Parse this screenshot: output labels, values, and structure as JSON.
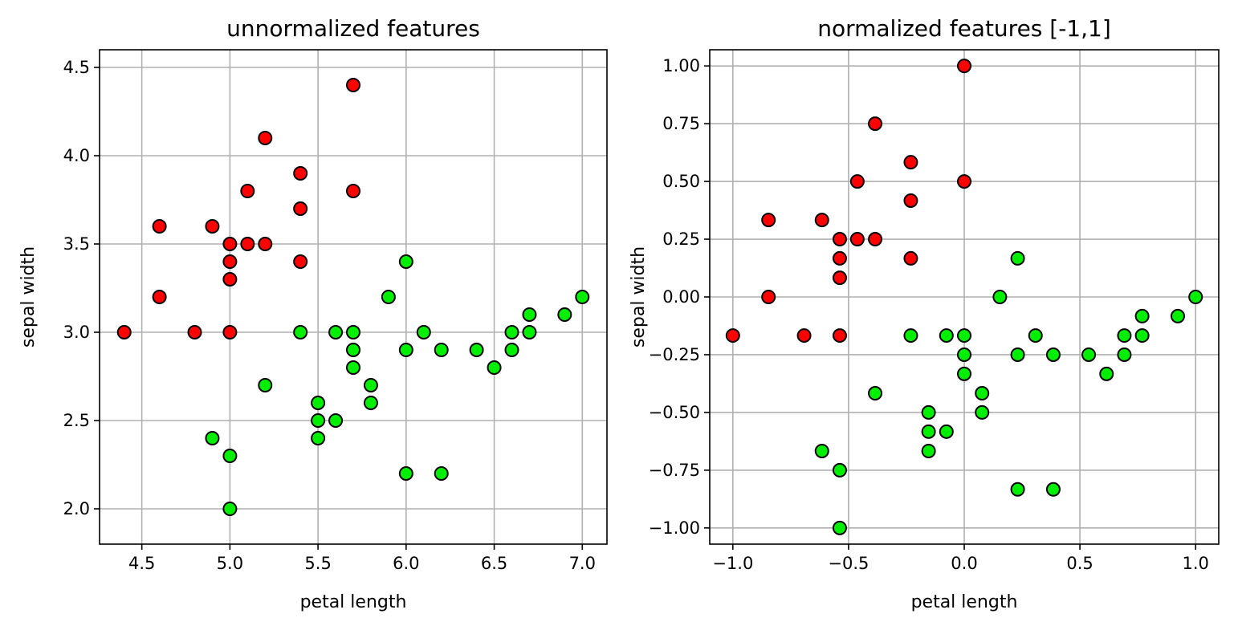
{
  "chart_data": [
    {
      "type": "scatter",
      "title": "unnormalized features",
      "xlabel": "petal length",
      "ylabel": "sepal width",
      "xlim": [
        4.26,
        7.14
      ],
      "ylim": [
        1.8,
        4.6
      ],
      "xticks": [
        "4.5",
        "5.0",
        "5.5",
        "6.0",
        "6.5",
        "7.0"
      ],
      "xtick_values": [
        4.5,
        5.0,
        5.5,
        6.0,
        6.5,
        7.0
      ],
      "yticks": [
        "2.0",
        "2.5",
        "3.0",
        "3.5",
        "4.0",
        "4.5"
      ],
      "ytick_values": [
        2.0,
        2.5,
        3.0,
        3.5,
        4.0,
        4.5
      ],
      "grid": true,
      "series": [
        {
          "color": "#ff0000",
          "points": [
            [
              5.7,
              4.4
            ],
            [
              5.2,
              4.1
            ],
            [
              5.4,
              3.9
            ],
            [
              5.1,
              3.8
            ],
            [
              5.7,
              3.8
            ],
            [
              5.4,
              3.7
            ],
            [
              4.6,
              3.6
            ],
            [
              4.9,
              3.6
            ],
            [
              5.0,
              3.5
            ],
            [
              5.1,
              3.5
            ],
            [
              5.2,
              3.5
            ],
            [
              5.0,
              3.4
            ],
            [
              5.4,
              3.4
            ],
            [
              5.0,
              3.3
            ],
            [
              4.6,
              3.2
            ],
            [
              4.4,
              3.0
            ],
            [
              4.8,
              3.0
            ],
            [
              5.0,
              3.0
            ]
          ]
        },
        {
          "color": "#00ee00",
          "points": [
            [
              6.0,
              3.4
            ],
            [
              5.9,
              3.2
            ],
            [
              7.0,
              3.2
            ],
            [
              6.7,
              3.1
            ],
            [
              6.9,
              3.1
            ],
            [
              5.4,
              3.0
            ],
            [
              5.6,
              3.0
            ],
            [
              5.7,
              3.0
            ],
            [
              6.1,
              3.0
            ],
            [
              6.6,
              3.0
            ],
            [
              6.7,
              3.0
            ],
            [
              5.7,
              2.9
            ],
            [
              6.0,
              2.9
            ],
            [
              6.2,
              2.9
            ],
            [
              6.4,
              2.9
            ],
            [
              6.6,
              2.9
            ],
            [
              5.7,
              2.8
            ],
            [
              6.5,
              2.8
            ],
            [
              5.2,
              2.7
            ],
            [
              5.8,
              2.7
            ],
            [
              5.5,
              2.6
            ],
            [
              5.8,
              2.6
            ],
            [
              5.5,
              2.5
            ],
            [
              5.6,
              2.5
            ],
            [
              4.9,
              2.4
            ],
            [
              5.5,
              2.4
            ],
            [
              5.0,
              2.3
            ],
            [
              6.0,
              2.2
            ],
            [
              6.2,
              2.2
            ],
            [
              5.0,
              2.0
            ]
          ]
        }
      ]
    },
    {
      "type": "scatter",
      "title": "normalized features [-1,1]",
      "xlabel": "petal length",
      "ylabel": "sepal width",
      "xlim": [
        -1.1,
        1.1
      ],
      "ylim": [
        -1.07,
        1.07
      ],
      "xticks": [
        "−1.0",
        "−0.5",
        "0.0",
        "0.5",
        "1.0"
      ],
      "xtick_values": [
        -1.0,
        -0.5,
        0.0,
        0.5,
        1.0
      ],
      "yticks": [
        "−1.00",
        "−0.75",
        "−0.50",
        "−0.25",
        "0.00",
        "0.25",
        "0.50",
        "0.75",
        "1.00"
      ],
      "ytick_values": [
        -1.0,
        -0.75,
        -0.5,
        -0.25,
        0.0,
        0.25,
        0.5,
        0.75,
        1.0
      ],
      "grid": true,
      "series": [
        {
          "color": "#ff0000",
          "points": [
            [
              0.0,
              1.0
            ],
            [
              -0.385,
              0.75
            ],
            [
              -0.231,
              0.583
            ],
            [
              -0.462,
              0.5
            ],
            [
              0.0,
              0.5
            ],
            [
              -0.231,
              0.417
            ],
            [
              -0.846,
              0.333
            ],
            [
              -0.615,
              0.333
            ],
            [
              -0.538,
              0.25
            ],
            [
              -0.462,
              0.25
            ],
            [
              -0.385,
              0.25
            ],
            [
              -0.538,
              0.167
            ],
            [
              -0.231,
              0.167
            ],
            [
              -0.538,
              0.083
            ],
            [
              -0.846,
              0.0
            ],
            [
              -1.0,
              -0.167
            ],
            [
              -0.692,
              -0.167
            ],
            [
              -0.538,
              -0.167
            ]
          ]
        },
        {
          "color": "#00ee00",
          "points": [
            [
              0.231,
              0.167
            ],
            [
              0.154,
              0.0
            ],
            [
              1.0,
              0.0
            ],
            [
              0.769,
              -0.083
            ],
            [
              0.923,
              -0.083
            ],
            [
              -0.231,
              -0.167
            ],
            [
              -0.077,
              -0.167
            ],
            [
              0.0,
              -0.167
            ],
            [
              0.308,
              -0.167
            ],
            [
              0.692,
              -0.167
            ],
            [
              0.769,
              -0.167
            ],
            [
              0.0,
              -0.25
            ],
            [
              0.231,
              -0.25
            ],
            [
              0.385,
              -0.25
            ],
            [
              0.538,
              -0.25
            ],
            [
              0.692,
              -0.25
            ],
            [
              0.0,
              -0.333
            ],
            [
              0.615,
              -0.333
            ],
            [
              -0.385,
              -0.417
            ],
            [
              0.077,
              -0.417
            ],
            [
              -0.154,
              -0.5
            ],
            [
              0.077,
              -0.5
            ],
            [
              -0.154,
              -0.583
            ],
            [
              -0.077,
              -0.583
            ],
            [
              -0.615,
              -0.667
            ],
            [
              -0.154,
              -0.667
            ],
            [
              -0.538,
              -0.75
            ],
            [
              0.231,
              -0.833
            ],
            [
              0.385,
              -0.833
            ],
            [
              -0.538,
              -1.0
            ]
          ]
        }
      ]
    }
  ]
}
